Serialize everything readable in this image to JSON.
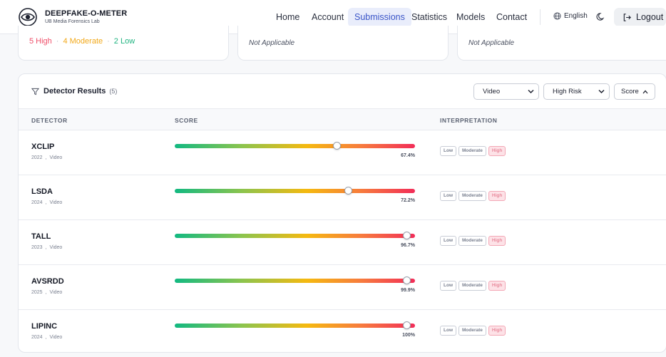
{
  "brand": {
    "title": "DEEPFAKE-O-METER",
    "subtitle": "UB Media Forensics Lab"
  },
  "nav": {
    "items": [
      {
        "label": "Home",
        "active": false
      },
      {
        "label": "Account",
        "active": false
      },
      {
        "label": "Submissions",
        "active": true
      },
      {
        "label": "Statistics",
        "active": false
      },
      {
        "label": "Models",
        "active": false
      },
      {
        "label": "Contact",
        "active": false
      }
    ],
    "language": "English",
    "logout": "Logout"
  },
  "summary": {
    "risk": {
      "high": "5 High",
      "moderate": "4 Moderate",
      "low": "2 Low"
    },
    "card2_value": "Not Applicable",
    "card3_value": "Not Applicable"
  },
  "results": {
    "title": "Detector Results",
    "count": "(5)",
    "filters": {
      "type": "Video",
      "risk": "High Risk",
      "sort": "Score"
    },
    "columns": {
      "detector": "DETECTOR",
      "score": "SCORE",
      "interpretation": "INTERPRETATION"
    },
    "levels": {
      "low": "Low",
      "moderate": "Moderate",
      "high": "High"
    },
    "rows": [
      {
        "name": "XCLIP",
        "year": "2022",
        "sep": ",",
        "media": "Video",
        "score_label": "67.4%",
        "score": 0.674
      },
      {
        "name": "LSDA",
        "year": "2024",
        "sep": ",",
        "media": "Video",
        "score_label": "72.2%",
        "score": 0.722
      },
      {
        "name": "TALL",
        "year": "2023",
        "sep": ",",
        "media": "Video",
        "score_label": "96.7%",
        "score": 0.967
      },
      {
        "name": "AVSRDD",
        "year": "2025",
        "sep": ",",
        "media": "Video",
        "score_label": "99.9%",
        "score": 0.999
      },
      {
        "name": "LIPINC",
        "year": "2024",
        "sep": ",",
        "media": "Video",
        "score_label": "100%",
        "score": 1.0
      }
    ]
  },
  "colors": {
    "high": "#ef4f6a",
    "moderate": "#f2a818",
    "low": "#1fb380",
    "accent": "#3a55c8"
  }
}
